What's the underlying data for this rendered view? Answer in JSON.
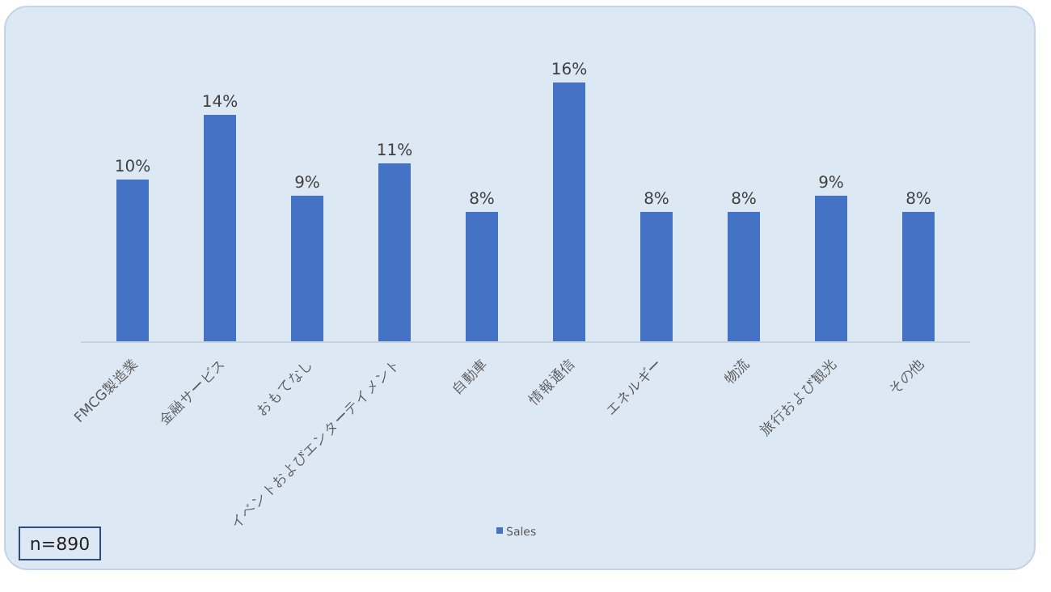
{
  "chart_data": {
    "type": "bar",
    "categories": [
      "FMCG製造業",
      "金融サービス",
      "おもてなし",
      "イベントおよびエンターテイメント",
      "自動車",
      "情報通信",
      "エネルギー",
      "物流",
      "旅行および観光",
      "その他"
    ],
    "series": [
      {
        "name": "Sales",
        "color": "#4472c4",
        "values": [
          10,
          14,
          9,
          11,
          8,
          16,
          8,
          8,
          9,
          8
        ],
        "value_labels": [
          "10%",
          "14%",
          "9%",
          "11%",
          "8%",
          "16%",
          "8%",
          "8%",
          "9%",
          "8%"
        ]
      }
    ],
    "legend": "bottom",
    "annotations": [
      "n=890"
    ]
  }
}
